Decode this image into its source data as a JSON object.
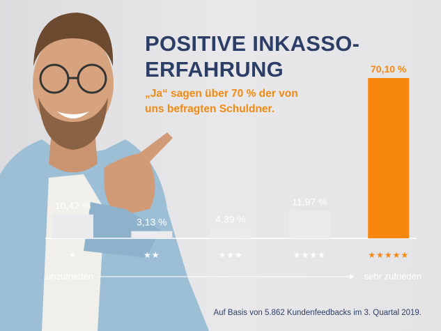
{
  "title_lines": [
    "POSITIVE INKASSO-",
    "ERFAHRUNG"
  ],
  "subtitle_lines": [
    "„Ja“ sagen über 70 % der von",
    "uns befragten Schuldner."
  ],
  "footnote": "Auf Basis von 5.862 Kundenfeedbacks im 3. Quartal 2019.",
  "colors": {
    "title": "#2c3e66",
    "accent": "#f7870f",
    "bar": "#ebebed",
    "label": "#ffffff"
  },
  "chart_data": {
    "type": "bar",
    "categories": [
      "★",
      "★★",
      "★★★",
      "★★★★",
      "★★★★★"
    ],
    "values": [
      10.42,
      3.13,
      4.39,
      11.97,
      70.1
    ],
    "data_labels": [
      "10,42 %",
      "3,13 %",
      "4,39 %",
      "11,97 %",
      "70,10 %"
    ],
    "highlight_index": 4,
    "scale_left_label": "unzufrieden",
    "scale_right_label": "sehr zufrieden",
    "unit": "%",
    "ylim": [
      0,
      70.1
    ]
  }
}
